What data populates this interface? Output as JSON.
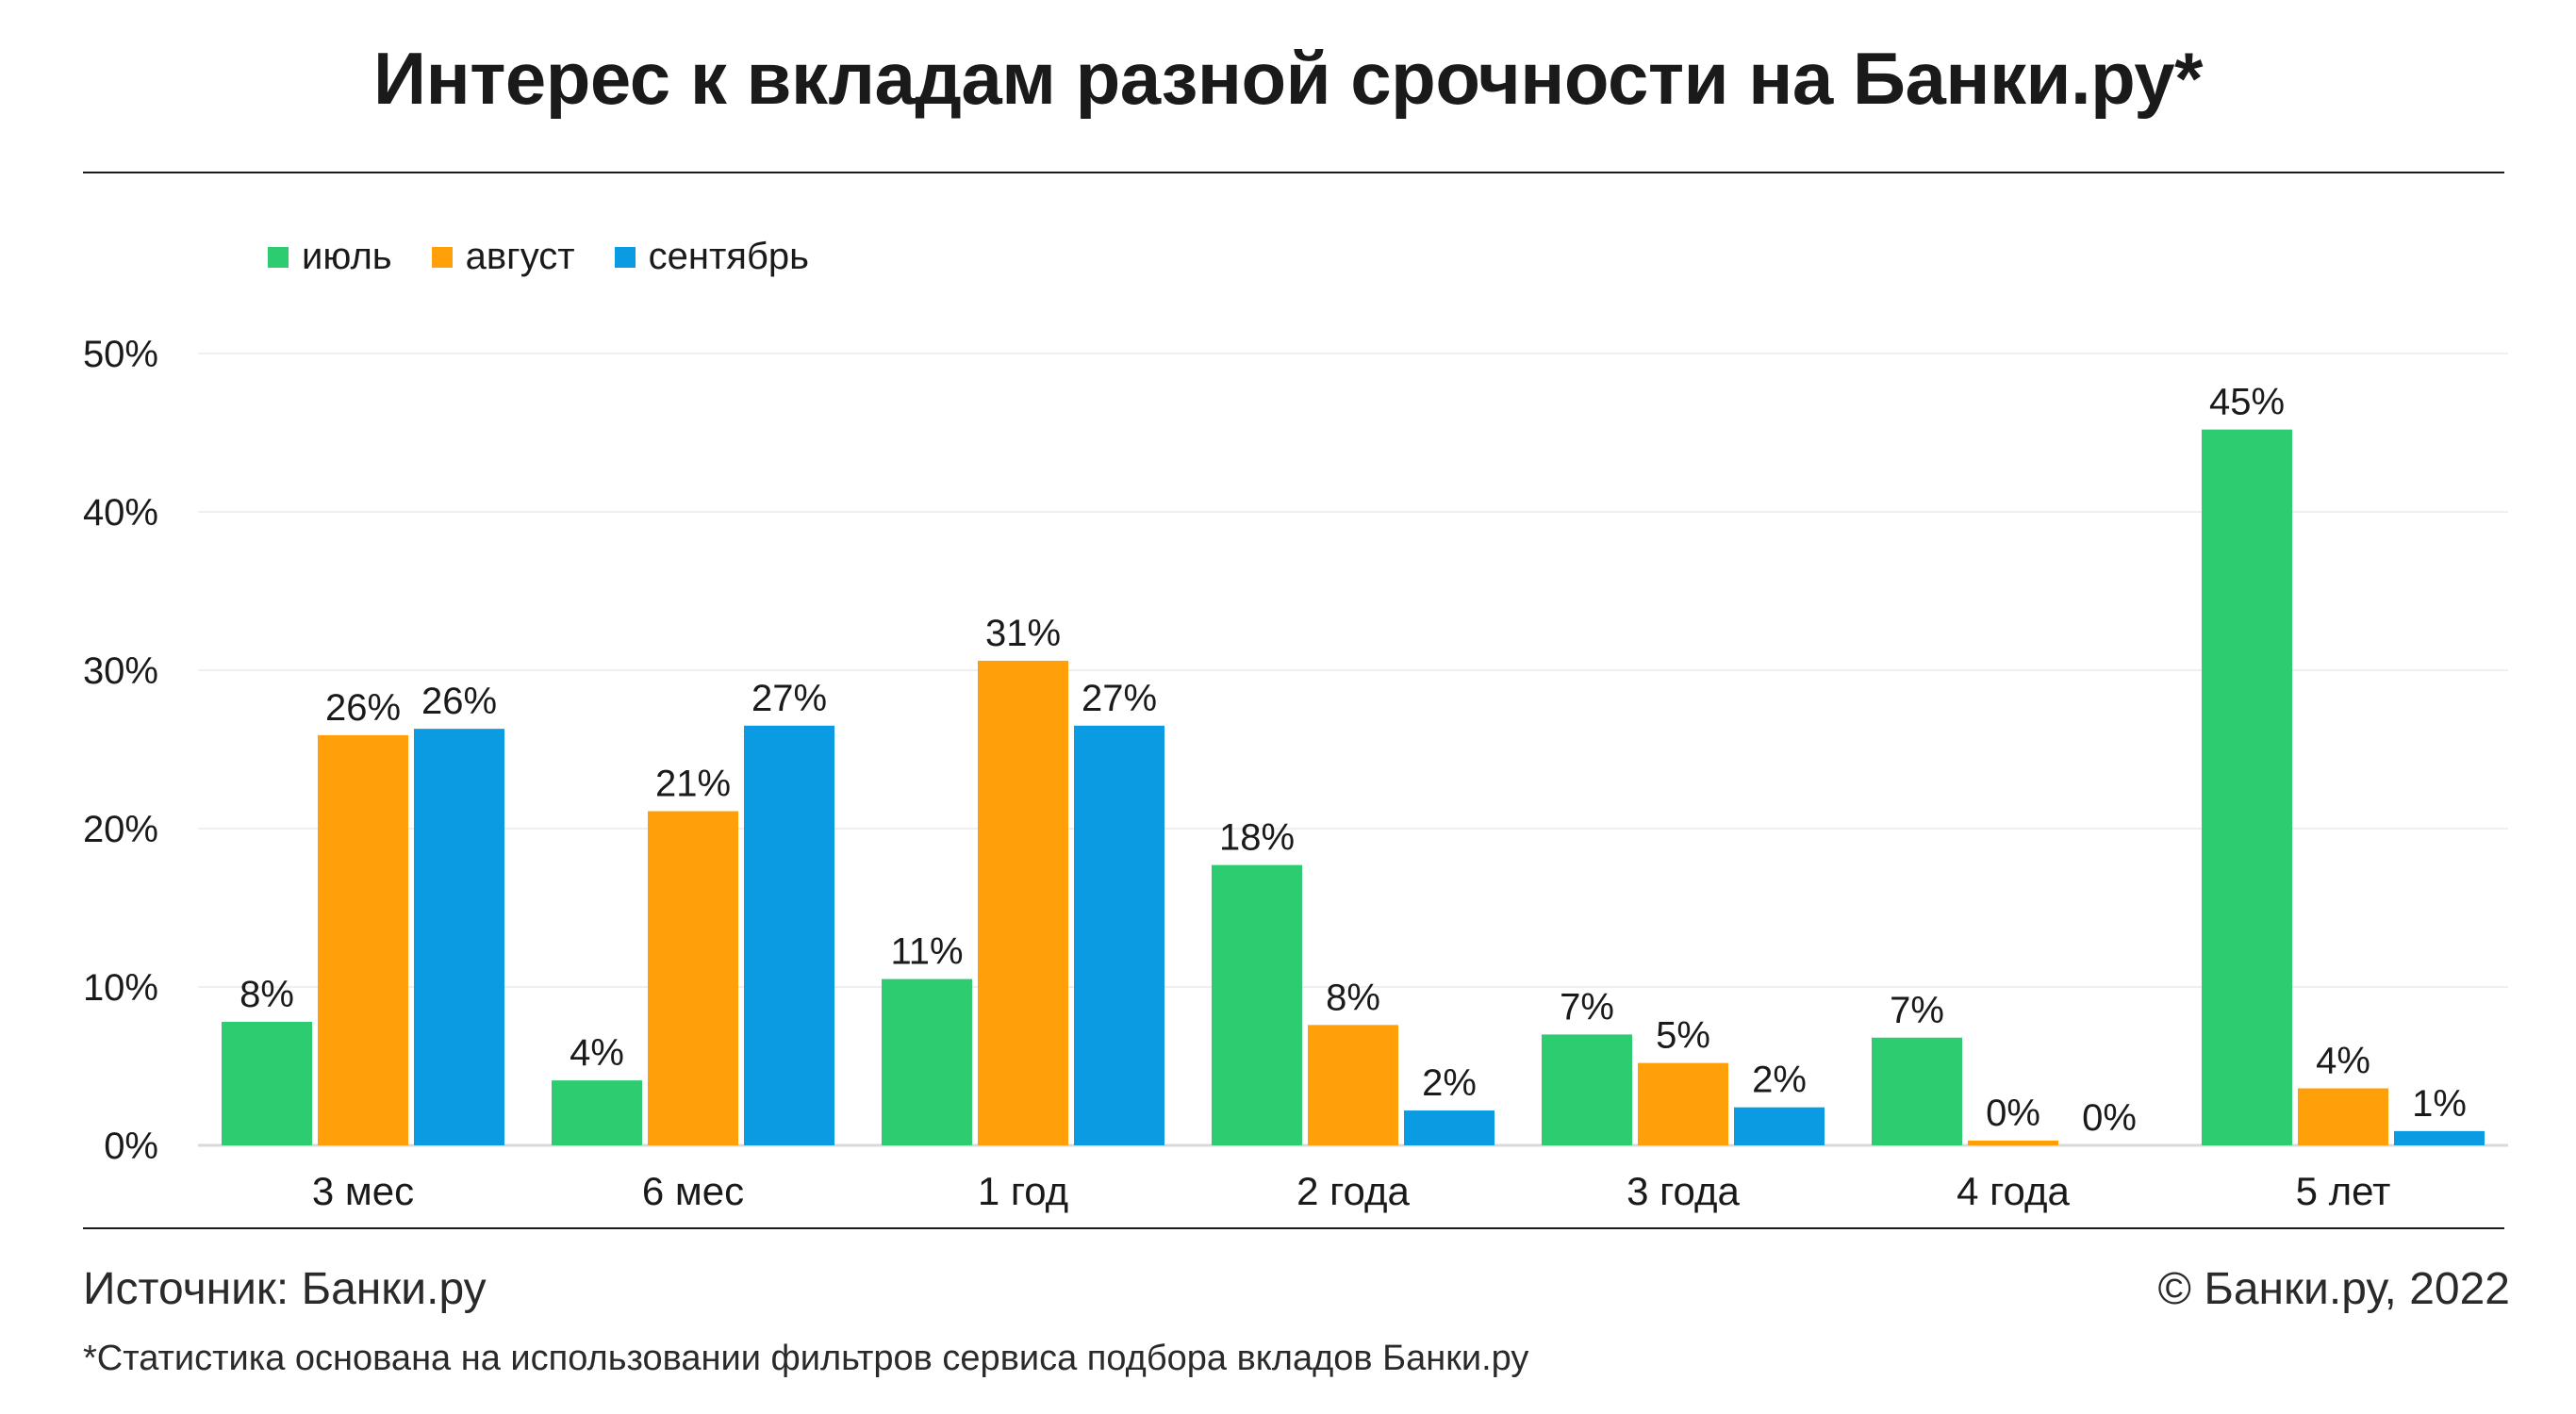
{
  "title": "Интерес к вкладам разной срочности на Банки.ру*",
  "footer": {
    "source": "Источник: Банки.ру",
    "copyright": "© Банки.ру, 2022",
    "note": "*Статистика основана на использовании фильтров сервиса подбора вкладов Банки.ру"
  },
  "chart_data": {
    "type": "bar",
    "title": "Интерес к вкладам разной срочности на Банки.ру*",
    "categories": [
      "3 мес",
      "6 мес",
      "1 год",
      "2 года",
      "3 года",
      "4 года",
      "5 лет"
    ],
    "series": [
      {
        "name": "июль",
        "color": "#2ecc71",
        "values": [
          7.8,
          4.1,
          10.5,
          17.7,
          7.0,
          6.8,
          45.2
        ],
        "labels": [
          "8%",
          "4%",
          "11%",
          "18%",
          "7%",
          "7%",
          "45%"
        ]
      },
      {
        "name": "август",
        "color": "#ff9f0a",
        "values": [
          25.9,
          21.1,
          30.6,
          7.6,
          5.2,
          0.3,
          3.6
        ],
        "labels": [
          "26%",
          "21%",
          "31%",
          "8%",
          "5%",
          "0%",
          "4%"
        ]
      },
      {
        "name": "сентябрь",
        "color": "#0a9be3",
        "values": [
          26.3,
          26.5,
          26.5,
          2.2,
          2.4,
          0.0,
          0.9
        ],
        "labels": [
          "26%",
          "27%",
          "27%",
          "2%",
          "2%",
          "0%",
          "1%"
        ]
      }
    ],
    "ylim": [
      0,
      50
    ],
    "yticks": [
      0,
      10,
      20,
      30,
      40,
      50
    ],
    "ytick_labels": [
      "0%",
      "10%",
      "20%",
      "30%",
      "40%",
      "50%"
    ],
    "xlabel": "",
    "ylabel": "",
    "grid": true,
    "legend_position": "top-left"
  }
}
